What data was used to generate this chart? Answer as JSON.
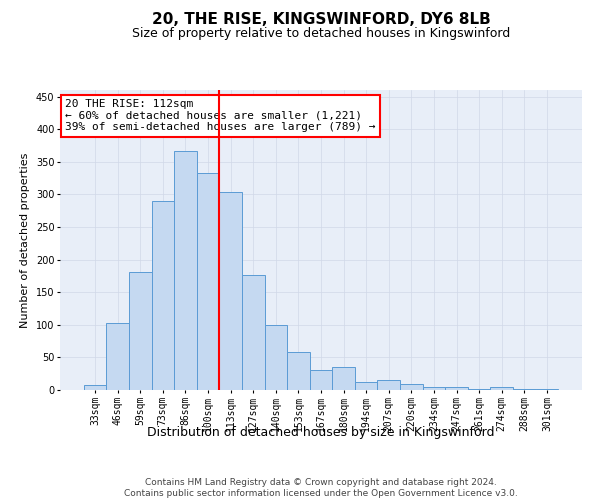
{
  "title": "20, THE RISE, KINGSWINFORD, DY6 8LB",
  "subtitle": "Size of property relative to detached houses in Kingswinford",
  "xlabel": "Distribution of detached houses by size in Kingswinford",
  "ylabel": "Number of detached properties",
  "categories": [
    "33sqm",
    "46sqm",
    "59sqm",
    "73sqm",
    "86sqm",
    "100sqm",
    "113sqm",
    "127sqm",
    "140sqm",
    "153sqm",
    "167sqm",
    "180sqm",
    "194sqm",
    "207sqm",
    "220sqm",
    "234sqm",
    "247sqm",
    "261sqm",
    "274sqm",
    "288sqm",
    "301sqm"
  ],
  "values": [
    8,
    103,
    181,
    290,
    367,
    332,
    303,
    176,
    100,
    58,
    31,
    35,
    12,
    16,
    9,
    5,
    5,
    1,
    4,
    2,
    1
  ],
  "bar_color": "#c5d9f1",
  "bar_edge_color": "#5b9bd5",
  "vline_x": 5.5,
  "vline_color": "red",
  "annotation_text": "20 THE RISE: 112sqm\n← 60% of detached houses are smaller (1,221)\n39% of semi-detached houses are larger (789) →",
  "annotation_box_color": "white",
  "annotation_box_edge_color": "red",
  "ylim": [
    0,
    460
  ],
  "yticks": [
    0,
    50,
    100,
    150,
    200,
    250,
    300,
    350,
    400,
    450
  ],
  "grid_color": "#d0d8e8",
  "background_color": "#e8eef8",
  "footnote": "Contains HM Land Registry data © Crown copyright and database right 2024.\nContains public sector information licensed under the Open Government Licence v3.0.",
  "title_fontsize": 11,
  "subtitle_fontsize": 9,
  "xlabel_fontsize": 9,
  "ylabel_fontsize": 8,
  "tick_fontsize": 7,
  "annotation_fontsize": 8,
  "footnote_fontsize": 6.5
}
